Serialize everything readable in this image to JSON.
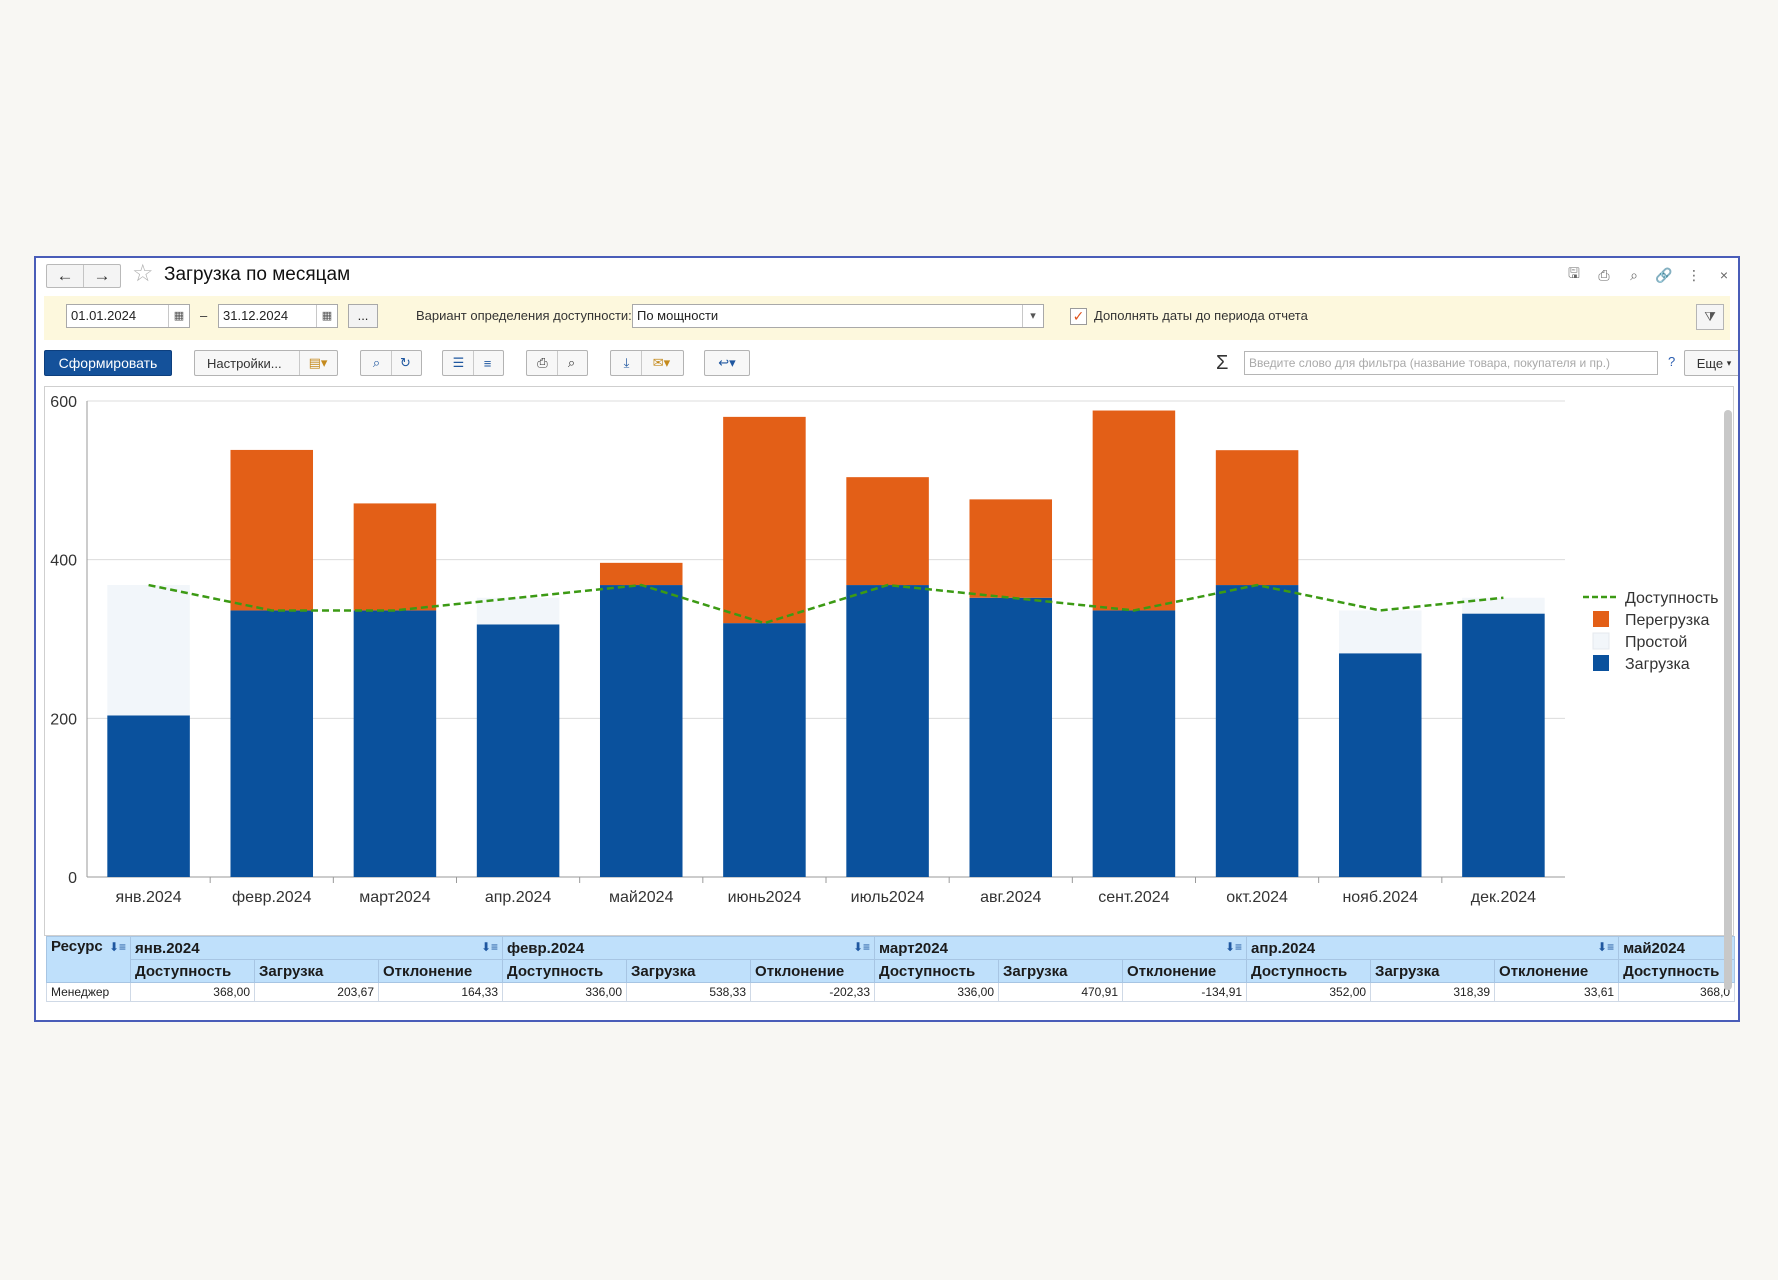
{
  "window": {
    "title": "Загрузка по месяцам",
    "back_icon": "←",
    "forward_icon": "→",
    "favorite_icon": "☆",
    "icons": [
      "save-icon",
      "print-icon",
      "preview-icon",
      "link-icon",
      "more-icon",
      "close-icon"
    ],
    "icon_glyphs": [
      "🖫",
      "⎙",
      "⌕",
      "🔗",
      "⋮",
      "×"
    ]
  },
  "params": {
    "date_from": "01.01.2024",
    "date_to": "31.12.2024",
    "dash": "–",
    "dots_label": "...",
    "variant_label": "Вариант определения доступности:",
    "variant_value": "По мощности",
    "fill_dates_label": "Дополнять даты до периода отчета",
    "fill_dates_checked": "✓"
  },
  "toolbar": {
    "generate_label": "Сформировать",
    "settings_label": "Настройки...",
    "search_placeholder": "Введите слово для фильтра (название товара, покупателя и пр.)",
    "sigma": "Σ",
    "help": "?",
    "more_label": "Еще"
  },
  "chart_data": {
    "type": "bar",
    "stacked": true,
    "categories": [
      "янв.2024",
      "февр.2024",
      "март2024",
      "апр.2024",
      "май2024",
      "июнь2024",
      "июль2024",
      "авг.2024",
      "сент.2024",
      "окт.2024",
      "нояб.2024",
      "дек.2024"
    ],
    "series": [
      {
        "name": "Загрузка",
        "color": "#0a519d",
        "values": [
          203.67,
          336,
          336,
          318.39,
          368,
          320,
          368,
          352,
          336,
          368,
          282,
          332
        ]
      },
      {
        "name": "Простой",
        "color": "#f2f6fa",
        "values": [
          164.33,
          0,
          0,
          33.61,
          0,
          0,
          0,
          0,
          0,
          0,
          54,
          20
        ]
      },
      {
        "name": "Перегрузка",
        "color": "#e35f17",
        "values": [
          0,
          202.33,
          134.91,
          0,
          28,
          260,
          136,
          124,
          252,
          170,
          0,
          0
        ]
      }
    ],
    "line": {
      "name": "Доступность",
      "color": "#3c9a14",
      "values": [
        368,
        336,
        336,
        352,
        368,
        320,
        368,
        352,
        336,
        368,
        336,
        352
      ]
    },
    "legend_order": [
      "Доступность",
      "Перегрузка",
      "Простой",
      "Загрузка"
    ],
    "yticks": [
      0,
      200,
      400,
      600
    ],
    "ylim": [
      0,
      600
    ],
    "grid": true,
    "legend_position": "right"
  },
  "table": {
    "resource_header": "Ресурс",
    "months": [
      "янв.2024",
      "февр.2024",
      "март2024",
      "апр.2024",
      "май2024"
    ],
    "subheaders": [
      "Доступность",
      "Загрузка",
      "Отклонение"
    ],
    "rows": [
      {
        "name": "Менеджер",
        "values": [
          "368,00",
          "203,67",
          "164,33",
          "336,00",
          "538,33",
          "-202,33",
          "336,00",
          "470,91",
          "-134,91",
          "352,00",
          "318,39",
          "33,61",
          "368,0"
        ]
      }
    ]
  }
}
